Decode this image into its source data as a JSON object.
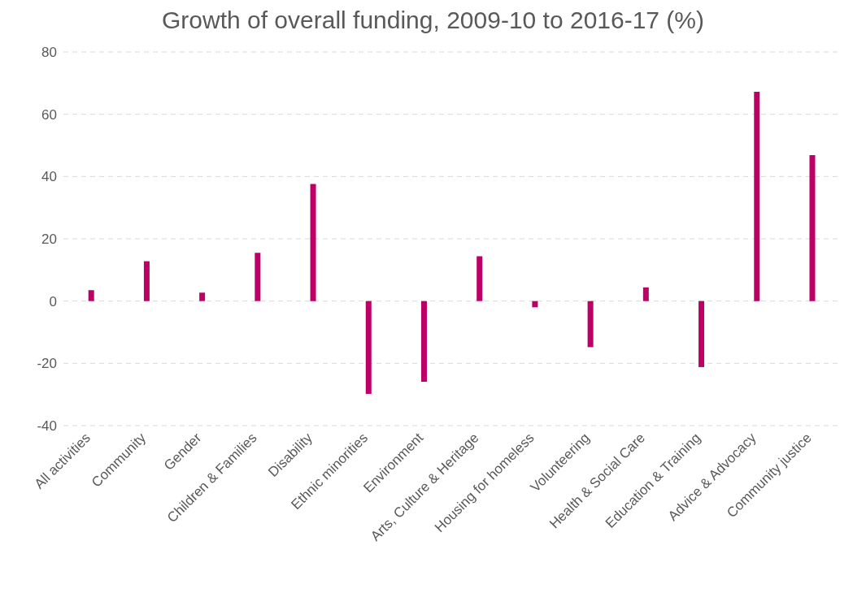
{
  "chart_data": {
    "type": "bar",
    "title": "Growth of overall funding, 2009-10 to 2016-17 (%)",
    "categories": [
      "All activities",
      "Community",
      "Gender",
      "Children & Families",
      "Disability",
      "Ethnic minorities",
      "Environment",
      "Arts, Culture & Heritage",
      "Housing for homeless",
      "Volunteering",
      "Health & Social Care",
      "Education & Training",
      "Advice & Advocacy",
      "Community justice"
    ],
    "values": [
      3.5,
      12.8,
      2.7,
      15.5,
      37.6,
      -29.8,
      -25.9,
      14.4,
      -2.0,
      -14.8,
      4.4,
      -21.2,
      67.2,
      46.9
    ],
    "color": "#bc0066",
    "ylim": [
      -40,
      80
    ],
    "yticks": [
      -40,
      -20,
      0,
      20,
      40,
      60,
      80
    ],
    "grid": "y"
  }
}
